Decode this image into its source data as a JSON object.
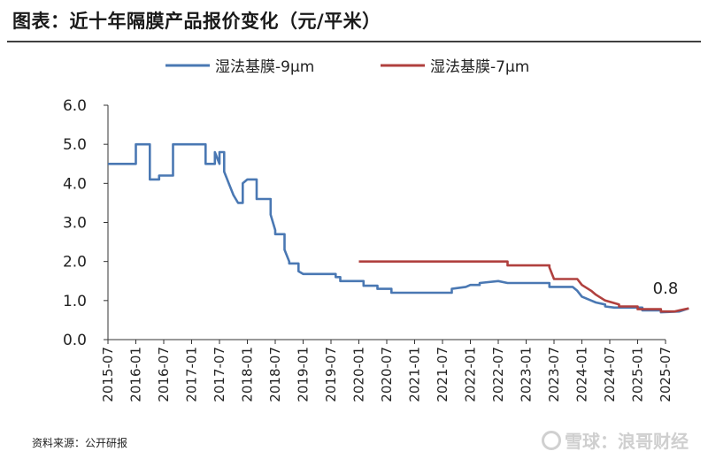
{
  "header": {
    "title": "图表：近十年隔膜产品报价变化（元/平米）"
  },
  "footer": {
    "source": "资料来源：公开研报",
    "watermark": "雪球：浪哥财经"
  },
  "colors": {
    "series_9um": "#4a78b3",
    "series_7um": "#b0403e",
    "axis": "#333333"
  },
  "chart_data": {
    "type": "line",
    "title": "近十年隔膜产品报价变化（元/平米）",
    "ylim": [
      0,
      6
    ],
    "yticks": [
      "0.0",
      "1.0",
      "2.0",
      "3.0",
      "4.0",
      "5.0",
      "6.0"
    ],
    "xticks": [
      "2015-07",
      "2016-01",
      "2016-07",
      "2017-01",
      "2017-07",
      "2018-01",
      "2018-07",
      "2019-01",
      "2019-07",
      "2020-01",
      "2020-07",
      "2021-01",
      "2021-07",
      "2022-01",
      "2022-07",
      "2023-01",
      "2023-07",
      "2024-01",
      "2024-07",
      "2025-01",
      "2025-07"
    ],
    "legend_position": "top",
    "annotation": "0.8",
    "series": [
      {
        "name": "湿法基膜-9μm",
        "legend": "湿法基膜-9μm",
        "points": [
          [
            "2015-07",
            4.5
          ],
          [
            "2016-01",
            4.5
          ],
          [
            "2016-01",
            5.0
          ],
          [
            "2016-04",
            5.0
          ],
          [
            "2016-04",
            4.1
          ],
          [
            "2016-06",
            4.1
          ],
          [
            "2016-06",
            4.2
          ],
          [
            "2016-09",
            4.2
          ],
          [
            "2016-09",
            5.0
          ],
          [
            "2017-04",
            5.0
          ],
          [
            "2017-04",
            4.5
          ],
          [
            "2017-06",
            4.5
          ],
          [
            "2017-06",
            4.8
          ],
          [
            "2017-07",
            4.5
          ],
          [
            "2017-07",
            4.8
          ],
          [
            "2017-08",
            4.8
          ],
          [
            "2017-08",
            4.3
          ],
          [
            "2017-09",
            4.0
          ],
          [
            "2017-10",
            3.7
          ],
          [
            "2017-11",
            3.5
          ],
          [
            "2017-12",
            3.5
          ],
          [
            "2017-12",
            4.0
          ],
          [
            "2018-01",
            4.1
          ],
          [
            "2018-03",
            4.1
          ],
          [
            "2018-03",
            3.6
          ],
          [
            "2018-06",
            3.6
          ],
          [
            "2018-06",
            3.2
          ],
          [
            "2018-07",
            2.8
          ],
          [
            "2018-07",
            2.7
          ],
          [
            "2018-09",
            2.7
          ],
          [
            "2018-09",
            2.3
          ],
          [
            "2018-10",
            2.0
          ],
          [
            "2018-10",
            1.95
          ],
          [
            "2018-12",
            1.95
          ],
          [
            "2018-12",
            1.75
          ],
          [
            "2019-01",
            1.68
          ],
          [
            "2019-08",
            1.68
          ],
          [
            "2019-08",
            1.6
          ],
          [
            "2019-09",
            1.6
          ],
          [
            "2019-09",
            1.5
          ],
          [
            "2020-02",
            1.5
          ],
          [
            "2020-02",
            1.38
          ],
          [
            "2020-05",
            1.38
          ],
          [
            "2020-05",
            1.3
          ],
          [
            "2020-08",
            1.3
          ],
          [
            "2020-08",
            1.2
          ],
          [
            "2021-09",
            1.2
          ],
          [
            "2021-09",
            1.3
          ],
          [
            "2021-12",
            1.35
          ],
          [
            "2022-01",
            1.4
          ],
          [
            "2022-03",
            1.4
          ],
          [
            "2022-03",
            1.45
          ],
          [
            "2022-07",
            1.5
          ],
          [
            "2022-09",
            1.45
          ],
          [
            "2023-06",
            1.45
          ],
          [
            "2023-06",
            1.35
          ],
          [
            "2023-11",
            1.35
          ],
          [
            "2023-12",
            1.25
          ],
          [
            "2024-01",
            1.1
          ],
          [
            "2024-03",
            1.0
          ],
          [
            "2024-04",
            0.95
          ],
          [
            "2024-06",
            0.9
          ],
          [
            "2024-06",
            0.85
          ],
          [
            "2024-08",
            0.82
          ],
          [
            "2025-02",
            0.82
          ],
          [
            "2025-02",
            0.75
          ],
          [
            "2025-06",
            0.75
          ],
          [
            "2025-06",
            0.7
          ],
          [
            "2025-10",
            0.72
          ],
          [
            "2025-12",
            0.8
          ]
        ]
      },
      {
        "name": "湿法基膜-7μm",
        "legend": "湿法基膜-7μm",
        "points": [
          [
            "2020-01",
            2.0
          ],
          [
            "2022-09",
            2.0
          ],
          [
            "2022-09",
            1.9
          ],
          [
            "2023-06",
            1.9
          ],
          [
            "2023-06",
            1.85
          ],
          [
            "2023-07",
            1.55
          ],
          [
            "2023-12",
            1.55
          ],
          [
            "2024-01",
            1.4
          ],
          [
            "2024-03",
            1.25
          ],
          [
            "2024-04",
            1.15
          ],
          [
            "2024-06",
            1.0
          ],
          [
            "2024-09",
            0.9
          ],
          [
            "2024-09",
            0.85
          ],
          [
            "2025-01",
            0.85
          ],
          [
            "2025-01",
            0.78
          ],
          [
            "2025-06",
            0.78
          ],
          [
            "2025-06",
            0.72
          ],
          [
            "2025-09",
            0.72
          ],
          [
            "2025-10",
            0.75
          ],
          [
            "2025-12",
            0.8
          ]
        ]
      }
    ]
  }
}
